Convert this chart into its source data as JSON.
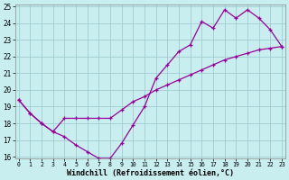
{
  "xlabel": "Windchill (Refroidissement éolien,°C)",
  "background_color": "#c8eef0",
  "grid_color": "#a0ccd0",
  "line_color": "#990099",
  "xlim_min": 0,
  "xlim_max": 23,
  "ylim_min": 16,
  "ylim_max": 25,
  "xticks": [
    0,
    1,
    2,
    3,
    4,
    5,
    6,
    7,
    8,
    9,
    10,
    11,
    12,
    13,
    14,
    15,
    16,
    17,
    18,
    19,
    20,
    21,
    22,
    23
  ],
  "yticks": [
    16,
    17,
    18,
    19,
    20,
    21,
    22,
    23,
    24,
    25
  ],
  "curve1_x": [
    0,
    1,
    2,
    3,
    4,
    5,
    6,
    7,
    8,
    9,
    10,
    11,
    12,
    13,
    14,
    15,
    16,
    17,
    18,
    19,
    20,
    21,
    22,
    23
  ],
  "curve1_y": [
    19.4,
    18.6,
    18.0,
    17.5,
    17.2,
    16.7,
    16.3,
    15.9,
    15.9,
    16.8,
    17.9,
    19.0,
    20.7,
    21.5,
    22.3,
    22.7,
    24.1,
    23.7,
    24.8,
    24.3,
    24.8,
    24.3,
    23.6,
    22.6
  ],
  "curve2_x": [
    0,
    1,
    2,
    3,
    4,
    5,
    6,
    7,
    8,
    9,
    10,
    11,
    12,
    13,
    14,
    15,
    16,
    17,
    18,
    19,
    20,
    21,
    22,
    23
  ],
  "curve2_y": [
    19.4,
    18.6,
    18.0,
    17.5,
    18.3,
    18.3,
    18.3,
    18.3,
    18.3,
    18.8,
    19.3,
    19.6,
    20.0,
    20.3,
    20.6,
    20.9,
    21.2,
    21.5,
    21.8,
    22.0,
    22.2,
    22.4,
    22.5,
    22.6
  ],
  "markersize": 3.5,
  "linewidth": 0.9,
  "tick_fontsize": 5.5,
  "xlabel_fontsize": 6.0
}
